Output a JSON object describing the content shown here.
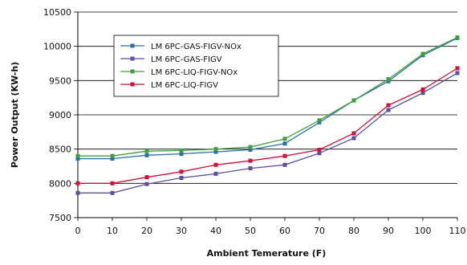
{
  "chart_data": {
    "type": "line",
    "xlabel": "Ambient Temerature (F)",
    "ylabel": "Power Output (KW-h)",
    "xlim": [
      0,
      110
    ],
    "ylim": [
      7500,
      10500
    ],
    "x_ticks": [
      "0",
      "10",
      "20",
      "30",
      "40",
      "50",
      "60",
      "70",
      "80",
      "90",
      "100",
      "110"
    ],
    "y_ticks": [
      "7500",
      "8000",
      "8500",
      "9000",
      "9500",
      "10000",
      "10500"
    ],
    "grid": "horizontal",
    "legend_position": "upper-left",
    "x": [
      0,
      10,
      20,
      30,
      40,
      50,
      60,
      70,
      80,
      90,
      100,
      110
    ],
    "series": [
      {
        "name": "LM 6PC-GAS-FIGV-NOx",
        "color": "#2b6fb0",
        "values": [
          8360,
          8360,
          8410,
          8430,
          8460,
          8490,
          8580,
          8890,
          9210,
          9490,
          9870,
          10120
        ]
      },
      {
        "name": "LM 6PC-GAS-FIGV",
        "color": "#5a4fa0",
        "values": [
          7860,
          7860,
          7990,
          8080,
          8140,
          8220,
          8270,
          8440,
          8660,
          9070,
          9320,
          9610
        ]
      },
      {
        "name": "LM 6PC-LIQ-FIGV-NOx",
        "color": "#3f9f3a",
        "values": [
          8400,
          8400,
          8470,
          8480,
          8500,
          8530,
          8650,
          8920,
          9210,
          9520,
          9890,
          10130
        ]
      },
      {
        "name": "LM 6PC-LIQ-FIGV",
        "color": "#d0103a",
        "values": [
          8000,
          8000,
          8090,
          8170,
          8270,
          8330,
          8400,
          8490,
          8730,
          9140,
          9370,
          9680
        ]
      }
    ]
  }
}
